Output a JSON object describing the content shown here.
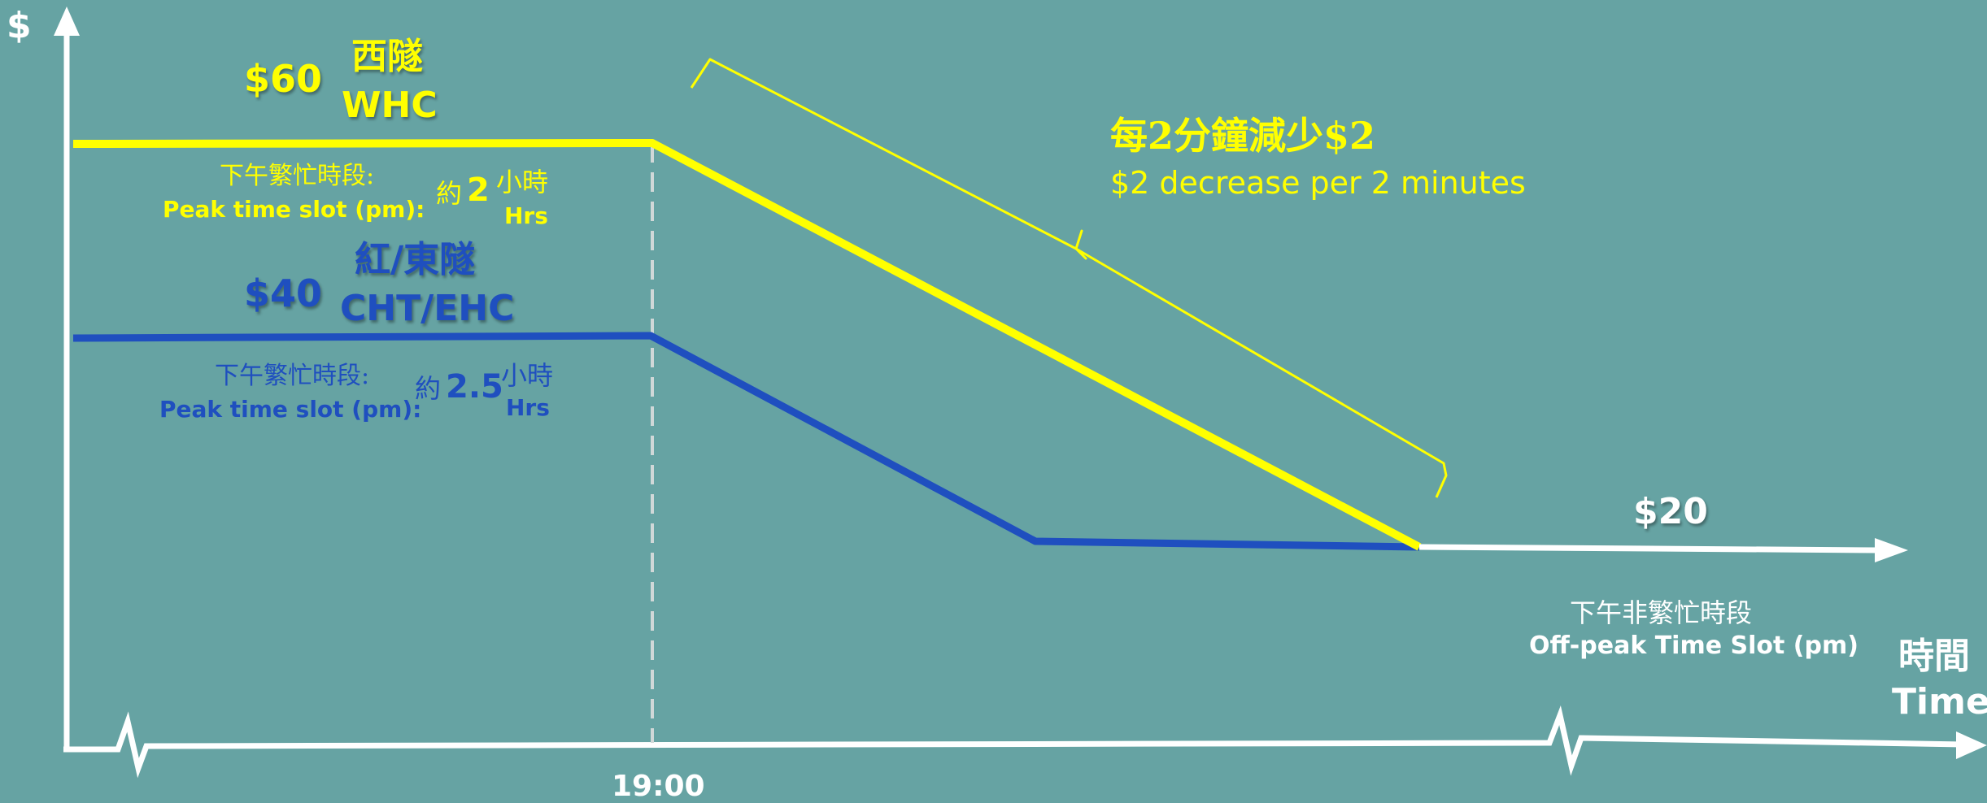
{
  "colors": {
    "background": "#66a3a3",
    "whc": "#ffff00",
    "cht_ehc": "#1f4fbf",
    "offpeak": "#ffffff",
    "axis": "#ffffff",
    "divider": "#d0d8d8"
  },
  "axes": {
    "y_label": "$",
    "x_label_zh": "時間",
    "x_label_en": "Time",
    "tick_1900": "19:00"
  },
  "whc": {
    "price": "$60",
    "name_zh": "西隧",
    "name_en": "WHC",
    "peak_label_zh": "下午繁忙時段:",
    "peak_label_en": "Peak time slot (pm):",
    "approx_zh": "約",
    "duration": "2",
    "hours_zh": "小時",
    "hours_en": "Hrs"
  },
  "cht_ehc": {
    "price": "$40",
    "name_zh": "紅/東隧",
    "name_en": "CHT/EHC",
    "peak_label_zh": "下午繁忙時段:",
    "peak_label_en": "Peak time slot (pm):",
    "approx_zh": "約",
    "duration": "2.5",
    "hours_zh": "小時",
    "hours_en": "Hrs"
  },
  "decrease": {
    "label_zh": "每2分鐘減少$2",
    "label_en": "$2 decrease per 2 minutes"
  },
  "offpeak": {
    "price": "$20",
    "label_zh": "下午非繁忙時段",
    "label_en": "Off-peak Time Slot (pm)"
  }
}
